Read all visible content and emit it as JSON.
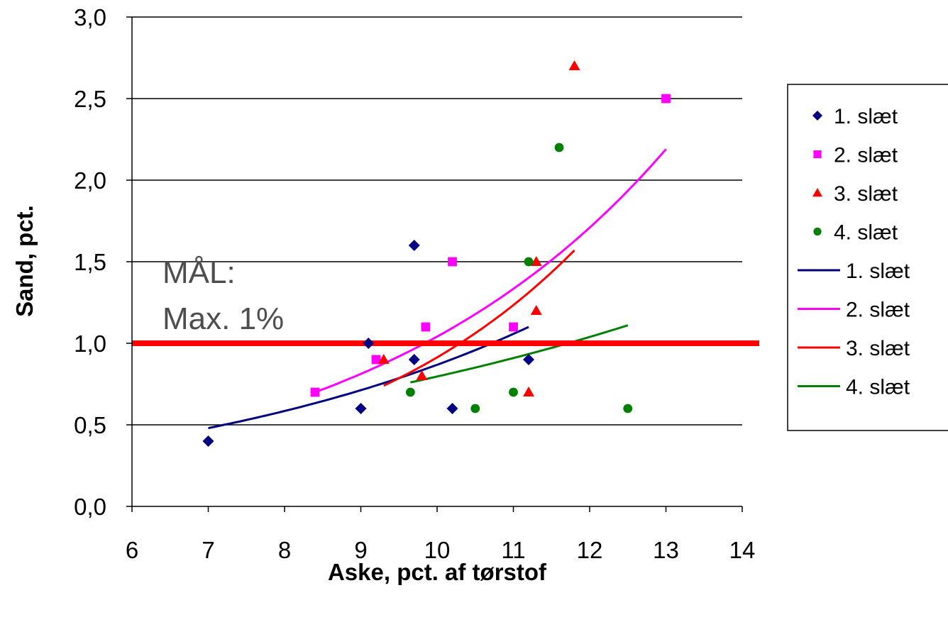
{
  "chart_data": {
    "type": "scatter",
    "xlabel": "Aske, pct. af tørstof",
    "ylabel": "Sand, pct.",
    "xlim": [
      6,
      14
    ],
    "ylim": [
      0,
      3.0
    ],
    "x_ticks": [
      "6",
      "7",
      "8",
      "9",
      "10",
      "11",
      "12",
      "13",
      "14"
    ],
    "y_ticks": [
      "0,0",
      "0,5",
      "1,0",
      "1,5",
      "2,0",
      "2,5",
      "3,0"
    ],
    "grid": "horizontal",
    "legend_position": "right",
    "annotation": [
      "MÅL:",
      "Max. 1%"
    ],
    "target_line": {
      "y": 1.0,
      "color": "#ff0000"
    },
    "series": [
      {
        "name": "1. slæt",
        "marker": "diamond",
        "color": "#000080",
        "points": [
          [
            7.0,
            0.4
          ],
          [
            9.0,
            0.6
          ],
          [
            9.1,
            1.0
          ],
          [
            9.7,
            1.6
          ],
          [
            9.7,
            0.9
          ],
          [
            10.2,
            0.6
          ],
          [
            11.2,
            0.9
          ]
        ]
      },
      {
        "name": "2. slæt",
        "marker": "square",
        "color": "#ff00ff",
        "points": [
          [
            8.4,
            0.7
          ],
          [
            9.2,
            0.9
          ],
          [
            9.85,
            1.1
          ],
          [
            10.2,
            1.5
          ],
          [
            11.0,
            1.1
          ],
          [
            13.0,
            2.5
          ]
        ]
      },
      {
        "name": "3. slæt",
        "marker": "triangle",
        "color": "#ff0000",
        "points": [
          [
            9.3,
            0.9
          ],
          [
            9.8,
            0.8
          ],
          [
            11.2,
            0.7
          ],
          [
            11.3,
            1.5
          ],
          [
            11.3,
            1.2
          ],
          [
            11.8,
            2.7
          ]
        ]
      },
      {
        "name": "4. slæt",
        "marker": "circle",
        "color": "#008000",
        "points": [
          [
            9.65,
            0.7
          ],
          [
            10.5,
            0.6
          ],
          [
            11.0,
            0.7
          ],
          [
            11.2,
            1.5
          ],
          [
            11.6,
            2.2
          ],
          [
            12.5,
            0.6
          ]
        ]
      }
    ],
    "trendlines": [
      {
        "name": "1. slæt",
        "color": "#000080",
        "type": "exponential",
        "x_range": [
          7.0,
          11.2
        ],
        "y_range": [
          0.48,
          1.1
        ]
      },
      {
        "name": "2. slæt",
        "color": "#ff00ff",
        "type": "exponential",
        "x_range": [
          8.4,
          13.0
        ],
        "y_range": [
          0.7,
          2.19
        ]
      },
      {
        "name": "3. slæt",
        "color": "#ff0000",
        "type": "exponential",
        "x_range": [
          9.3,
          11.8
        ],
        "y_range": [
          0.74,
          1.57
        ]
      },
      {
        "name": "4. slæt",
        "color": "#008000",
        "type": "exponential",
        "x_range": [
          9.65,
          12.5
        ],
        "y_range": [
          0.76,
          1.11
        ]
      }
    ]
  }
}
